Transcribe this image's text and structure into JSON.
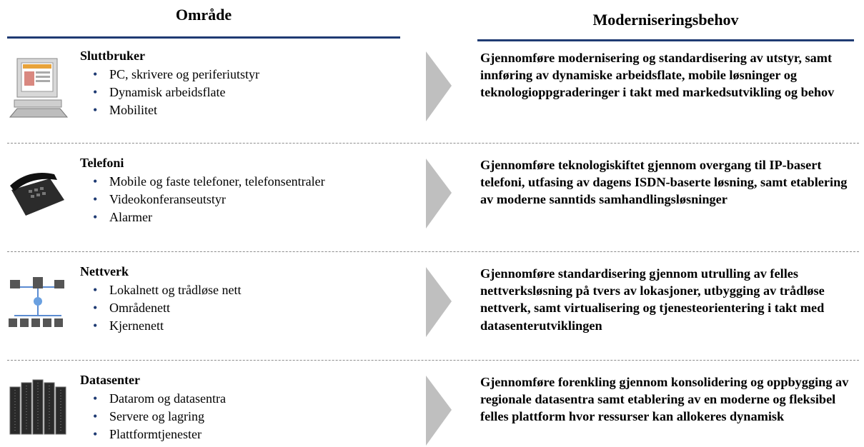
{
  "header": {
    "left": "Område",
    "right": "Moderniseringsbehov"
  },
  "rows": [
    {
      "title": "Sluttbruker",
      "bullets": [
        "PC, skrivere og periferiutstyr",
        "Dynamisk arbeidsflate",
        "Mobilitet"
      ],
      "description": "Gjennomføre modernisering og standardisering av utstyr, samt innføring av dynamiske arbeidsflate, mobile løsninger og teknologioppgraderinger i takt med markedsutvikling og behov"
    },
    {
      "title": "Telefoni",
      "bullets": [
        "Mobile og faste telefoner, telefonsentraler",
        "Videokonferanseutstyr",
        "Alarmer"
      ],
      "description": "Gjennomføre teknologiskiftet gjennom overgang til IP-basert telefoni, utfasing av dagens ISDN-baserte løsning, samt etablering av moderne sanntids samhandlingsløsninger"
    },
    {
      "title": "Nettverk",
      "bullets": [
        "Lokalnett og trådløse nett",
        "Områdenett",
        "Kjernenett"
      ],
      "description": "Gjennomføre standardisering gjennom utrulling av felles nettverksløsning på tvers av lokasjoner, utbygging av trådløse nettverk, samt virtualisering og tjenesteorientering i takt med datasenterutviklingen"
    },
    {
      "title": "Datasenter",
      "bullets": [
        "Datarom og datasentra",
        "Servere og lagring",
        "Plattformtjenester"
      ],
      "description": "Gjennomføre forenkling gjennom konsolidering og oppbygging av regionale datasentra samt etablering av en moderne og fleksibel felles plattform hvor ressurser kan allokeres dynamisk"
    }
  ]
}
